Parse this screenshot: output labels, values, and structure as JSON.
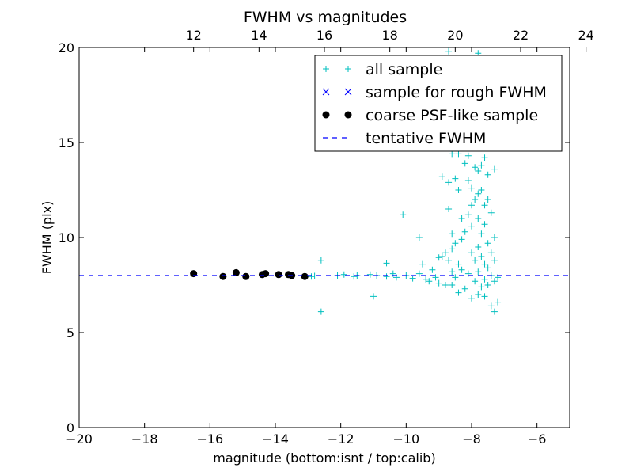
{
  "chart_data": {
    "type": "scatter",
    "title": "FWHM vs magnitudes",
    "xlabel": "magnitude (bottom:isnt / top:calib)",
    "ylabel": "FWHM (pix)",
    "xlim": [
      -20,
      -5
    ],
    "ylim": [
      0,
      20
    ],
    "x_ticks": [
      -20,
      -18,
      -16,
      -14,
      -12,
      -10,
      -8,
      -6
    ],
    "x_tick_labels": [
      "−20",
      "−18",
      "−16",
      "−14",
      "−12",
      "−10",
      "−8",
      "−6"
    ],
    "y_ticks": [
      0,
      5,
      10,
      15,
      20
    ],
    "y_tick_labels": [
      "0",
      "5",
      "10",
      "15",
      "20"
    ],
    "top_axis": {
      "ticks": [
        12,
        14,
        16,
        18,
        20,
        22,
        24
      ],
      "tick_labels": [
        "12",
        "14",
        "16",
        "18",
        "20",
        "22",
        "24"
      ],
      "offset": 28.5
    },
    "grid": false,
    "legend_position": "top-right",
    "series": [
      {
        "name": "all sample",
        "marker": "plus",
        "color": "#00bfbf",
        "points": [
          [
            -16.5,
            8.1
          ],
          [
            -15.6,
            7.95
          ],
          [
            -15.2,
            8.15
          ],
          [
            -14.9,
            7.95
          ],
          [
            -14.4,
            8.05
          ],
          [
            -14.3,
            8.1
          ],
          [
            -13.9,
            8.05
          ],
          [
            -13.6,
            8.05
          ],
          [
            -13.5,
            8.0
          ],
          [
            -13.1,
            7.95
          ],
          [
            -12.9,
            7.95
          ],
          [
            -12.8,
            7.98
          ],
          [
            -12.6,
            8.8
          ],
          [
            -12.6,
            6.1
          ],
          [
            -12.1,
            8.0
          ],
          [
            -11.9,
            8.05
          ],
          [
            -11.6,
            7.95
          ],
          [
            -11.5,
            8.0
          ],
          [
            -11.1,
            8.05
          ],
          [
            -11.0,
            6.9
          ],
          [
            -10.9,
            8.0
          ],
          [
            -10.6,
            8.65
          ],
          [
            -10.6,
            7.95
          ],
          [
            -10.4,
            8.1
          ],
          [
            -10.3,
            7.9
          ],
          [
            -10.1,
            11.2
          ],
          [
            -10.0,
            8.0
          ],
          [
            -9.8,
            7.85
          ],
          [
            -9.6,
            10.0
          ],
          [
            -9.6,
            8.1
          ],
          [
            -9.5,
            8.6
          ],
          [
            -9.4,
            7.8
          ],
          [
            -9.3,
            7.7
          ],
          [
            -9.2,
            8.3
          ],
          [
            -9.1,
            7.9
          ],
          [
            -9.0,
            8.95
          ],
          [
            -9.0,
            7.6
          ],
          [
            -8.9,
            13.2
          ],
          [
            -8.9,
            9.0
          ],
          [
            -8.8,
            9.2
          ],
          [
            -8.8,
            7.5
          ],
          [
            -8.7,
            19.8
          ],
          [
            -8.7,
            17.9
          ],
          [
            -8.7,
            12.9
          ],
          [
            -8.7,
            11.5
          ],
          [
            -8.7,
            8.8
          ],
          [
            -8.6,
            15.5
          ],
          [
            -8.6,
            14.4
          ],
          [
            -8.6,
            10.2
          ],
          [
            -8.6,
            9.4
          ],
          [
            -8.6,
            8.2
          ],
          [
            -8.6,
            7.5
          ],
          [
            -8.5,
            17.3
          ],
          [
            -8.5,
            13.1
          ],
          [
            -8.5,
            9.7
          ],
          [
            -8.5,
            7.9
          ],
          [
            -8.4,
            19.1
          ],
          [
            -8.4,
            14.4
          ],
          [
            -8.4,
            12.5
          ],
          [
            -8.4,
            8.6
          ],
          [
            -8.4,
            7.1
          ],
          [
            -8.3,
            16.9
          ],
          [
            -8.3,
            15.1
          ],
          [
            -8.3,
            11.0
          ],
          [
            -8.3,
            9.9
          ],
          [
            -8.3,
            8.3
          ],
          [
            -8.2,
            18.2
          ],
          [
            -8.2,
            13.9
          ],
          [
            -8.2,
            10.3
          ],
          [
            -8.2,
            7.3
          ],
          [
            -8.1,
            16.4
          ],
          [
            -8.1,
            14.3
          ],
          [
            -8.1,
            13.0
          ],
          [
            -8.1,
            11.2
          ],
          [
            -8.1,
            8.1
          ],
          [
            -8.0,
            17.4
          ],
          [
            -8.0,
            15.9
          ],
          [
            -8.0,
            12.6
          ],
          [
            -8.0,
            11.7
          ],
          [
            -8.0,
            10.6
          ],
          [
            -8.0,
            9.2
          ],
          [
            -8.0,
            6.8
          ],
          [
            -7.9,
            16.8
          ],
          [
            -7.9,
            13.7
          ],
          [
            -7.9,
            12.0
          ],
          [
            -7.9,
            8.8
          ],
          [
            -7.9,
            7.7
          ],
          [
            -7.8,
            19.7
          ],
          [
            -7.8,
            15.0
          ],
          [
            -7.8,
            13.5
          ],
          [
            -7.8,
            12.3
          ],
          [
            -7.8,
            11.0
          ],
          [
            -7.8,
            9.5
          ],
          [
            -7.8,
            8.2
          ],
          [
            -7.8,
            7.0
          ],
          [
            -7.7,
            18.6
          ],
          [
            -7.7,
            16.3
          ],
          [
            -7.7,
            13.8
          ],
          [
            -7.7,
            12.5
          ],
          [
            -7.7,
            10.2
          ],
          [
            -7.7,
            9.0
          ],
          [
            -7.7,
            7.4
          ],
          [
            -7.6,
            17.0
          ],
          [
            -7.6,
            15.5
          ],
          [
            -7.6,
            14.2
          ],
          [
            -7.6,
            11.7
          ],
          [
            -7.6,
            10.7
          ],
          [
            -7.6,
            8.6
          ],
          [
            -7.6,
            7.8
          ],
          [
            -7.6,
            6.9
          ],
          [
            -7.5,
            15.8
          ],
          [
            -7.5,
            13.3
          ],
          [
            -7.5,
            12.0
          ],
          [
            -7.5,
            9.7
          ],
          [
            -7.5,
            8.4
          ],
          [
            -7.5,
            7.5
          ],
          [
            -7.4,
            14.9
          ],
          [
            -7.4,
            11.3
          ],
          [
            -7.4,
            9.2
          ],
          [
            -7.4,
            8.0
          ],
          [
            -7.4,
            6.4
          ],
          [
            -7.3,
            13.6
          ],
          [
            -7.3,
            10.0
          ],
          [
            -7.3,
            8.8
          ],
          [
            -7.3,
            7.7
          ],
          [
            -7.3,
            6.1
          ],
          [
            -7.2,
            7.9
          ],
          [
            -7.2,
            6.6
          ]
        ]
      },
      {
        "name": "sample for rough FWHM",
        "marker": "x",
        "color": "#0000ff",
        "points": []
      },
      {
        "name": "coarse PSF-like sample",
        "marker": "circle",
        "color": "#000000",
        "points": [
          [
            -16.5,
            8.1
          ],
          [
            -15.6,
            7.95
          ],
          [
            -15.2,
            8.15
          ],
          [
            -14.9,
            7.95
          ],
          [
            -14.4,
            8.05
          ],
          [
            -14.3,
            8.1
          ],
          [
            -13.9,
            8.05
          ],
          [
            -13.6,
            8.05
          ],
          [
            -13.5,
            8.0
          ],
          [
            -13.1,
            7.95
          ]
        ]
      },
      {
        "name": "tentative FWHM",
        "marker": "dashed-line",
        "color": "#0000ff",
        "y": 8.0
      }
    ]
  }
}
